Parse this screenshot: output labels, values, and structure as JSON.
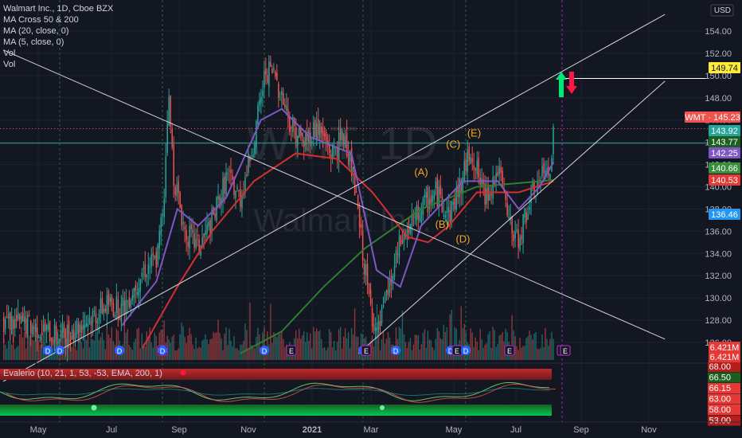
{
  "chart_data": {
    "type": "candlestick",
    "symbol_title": "Walmart Inc., 1D, Cboe BZX",
    "indicators": [
      "MA Cross 50 & 200",
      "MA (20, close, 0)",
      "MA (5, close, 0)",
      "Vol",
      "Vol"
    ],
    "watermark": {
      "ticker": "WMT, 1D",
      "name": "Walmart Inc."
    },
    "currency": "USD",
    "ylim": [
      125,
      155
    ],
    "y_ticks": [
      126,
      128,
      130,
      132,
      134,
      136,
      138,
      140,
      142,
      144,
      146,
      148,
      150,
      152,
      154
    ],
    "x_tick_labels": [
      "May",
      "Jul",
      "Sep",
      "Nov",
      "2021",
      "Mar",
      "May",
      "Jul",
      "Sep",
      "Nov"
    ],
    "close_series": [
      {
        "t": 0,
        "v": 128.0
      },
      {
        "t": 20,
        "v": 127.5
      },
      {
        "t": 40,
        "v": 126.5
      },
      {
        "t": 60,
        "v": 128.0
      },
      {
        "t": 75,
        "v": 129.5
      },
      {
        "t": 85,
        "v": 129.0
      },
      {
        "t": 100,
        "v": 132.5
      },
      {
        "t": 110,
        "v": 133.5
      },
      {
        "t": 115,
        "v": 139.0
      },
      {
        "t": 118,
        "v": 148.5
      },
      {
        "t": 122,
        "v": 141.0
      },
      {
        "t": 130,
        "v": 136.0
      },
      {
        "t": 140,
        "v": 134.5
      },
      {
        "t": 150,
        "v": 137.0
      },
      {
        "t": 160,
        "v": 141.0
      },
      {
        "t": 170,
        "v": 139.0
      },
      {
        "t": 180,
        "v": 144.5
      },
      {
        "t": 188,
        "v": 150.5
      },
      {
        "t": 195,
        "v": 150.0
      },
      {
        "t": 205,
        "v": 146.0
      },
      {
        "t": 215,
        "v": 144.0
      },
      {
        "t": 225,
        "v": 145.5
      },
      {
        "t": 235,
        "v": 143.0
      },
      {
        "t": 245,
        "v": 144.5
      },
      {
        "t": 250,
        "v": 141.5
      },
      {
        "t": 262,
        "v": 130.0
      },
      {
        "t": 268,
        "v": 126.5
      },
      {
        "t": 275,
        "v": 130.0
      },
      {
        "t": 285,
        "v": 135.0
      },
      {
        "t": 300,
        "v": 138.0
      },
      {
        "t": 310,
        "v": 139.5
      },
      {
        "t": 320,
        "v": 137.5
      },
      {
        "t": 330,
        "v": 141.0
      },
      {
        "t": 335,
        "v": 143.5
      },
      {
        "t": 345,
        "v": 139.0
      },
      {
        "t": 355,
        "v": 141.5
      },
      {
        "t": 362,
        "v": 137.0
      },
      {
        "t": 368,
        "v": 135.0
      },
      {
        "t": 380,
        "v": 139.5
      },
      {
        "t": 392,
        "v": 142.0
      },
      {
        "t": 395,
        "v": 145.2
      }
    ],
    "moving_averages": [
      {
        "name": "MA 200",
        "color": "#2e7d32",
        "points": [
          {
            "t": 170,
            "v": 125.0
          },
          {
            "t": 200,
            "v": 127.0
          },
          {
            "t": 230,
            "v": 131.0
          },
          {
            "t": 260,
            "v": 134.5
          },
          {
            "t": 300,
            "v": 138.0
          },
          {
            "t": 340,
            "v": 140.0
          },
          {
            "t": 395,
            "v": 140.6
          }
        ]
      },
      {
        "name": "MA 50",
        "color": "#d32f2f",
        "points": [
          {
            "t": 100,
            "v": 125.5
          },
          {
            "t": 125,
            "v": 131.0
          },
          {
            "t": 150,
            "v": 136.0
          },
          {
            "t": 180,
            "v": 140.5
          },
          {
            "t": 210,
            "v": 143.0
          },
          {
            "t": 240,
            "v": 142.5
          },
          {
            "t": 265,
            "v": 139.5
          },
          {
            "t": 290,
            "v": 135.5
          },
          {
            "t": 305,
            "v": 135.0
          },
          {
            "t": 320,
            "v": 136.5
          },
          {
            "t": 340,
            "v": 139.5
          },
          {
            "t": 370,
            "v": 139.5
          },
          {
            "t": 395,
            "v": 140.5
          }
        ]
      },
      {
        "name": "MA 20",
        "color": "#7e57c2",
        "points": [
          {
            "t": 85,
            "v": 127.5
          },
          {
            "t": 110,
            "v": 131.5
          },
          {
            "t": 125,
            "v": 138.0
          },
          {
            "t": 140,
            "v": 136.5
          },
          {
            "t": 160,
            "v": 139.0
          },
          {
            "t": 185,
            "v": 146.0
          },
          {
            "t": 200,
            "v": 147.0
          },
          {
            "t": 220,
            "v": 144.5
          },
          {
            "t": 250,
            "v": 143.0
          },
          {
            "t": 268,
            "v": 132.5
          },
          {
            "t": 285,
            "v": 131.0
          },
          {
            "t": 300,
            "v": 136.5
          },
          {
            "t": 330,
            "v": 140.5
          },
          {
            "t": 355,
            "v": 140.5
          },
          {
            "t": 370,
            "v": 138.0
          },
          {
            "t": 385,
            "v": 140.0
          },
          {
            "t": 395,
            "v": 142.2
          }
        ]
      }
    ],
    "wave_labels": [
      {
        "text": "(A)",
        "t": 300,
        "v": 141.0,
        "color": "#f5a623"
      },
      {
        "text": "(B)",
        "t": 315,
        "v": 136.3,
        "color": "#f5a623"
      },
      {
        "text": "(C)",
        "t": 323,
        "v": 143.5,
        "color": "#f5a623"
      },
      {
        "text": "(D)",
        "t": 330,
        "v": 135.0,
        "color": "#f5a623"
      },
      {
        "text": "(E)",
        "t": 338,
        "v": 144.5,
        "color": "#f5a623"
      }
    ],
    "trendlines": [
      {
        "name": "descending-line",
        "from": {
          "t": 0,
          "v": 152.3
        },
        "to": {
          "t": 475,
          "v": 126.3
        }
      },
      {
        "name": "channel-upper",
        "from": {
          "t": 0,
          "v": 122.5
        },
        "to": {
          "t": 475,
          "v": 155.5
        }
      },
      {
        "name": "channel-lower",
        "from": {
          "t": 255,
          "v": 125.0
        },
        "to": {
          "t": 475,
          "v": 149.5
        }
      }
    ],
    "horizontal_lines": [
      {
        "name": "target-149-74",
        "v": 149.74,
        "color": "#ffffff"
      },
      {
        "name": "level-143-92",
        "v": 143.92,
        "color": "#26a69a"
      },
      {
        "name": "last-price-line",
        "v": 145.23,
        "color": "#ef5350"
      }
    ],
    "price_labels": [
      {
        "text": "149.74",
        "v": 149.74,
        "bg": "#ffeb3b",
        "fg": "#131722"
      },
      {
        "text": "WMT · 145.23",
        "v": 145.23,
        "bg": "#ef5350",
        "fg": "#ffffff"
      },
      {
        "text": "143.92",
        "v": 143.92,
        "bg": "#26a69a",
        "fg": "#ffffff"
      },
      {
        "text": "143.77",
        "v": 143.77,
        "bg": "#1b5e20",
        "fg": "#ffffff"
      },
      {
        "text": "142.25",
        "v": 142.25,
        "bg": "#7e57c2",
        "fg": "#ffffff"
      },
      {
        "text": "140.66",
        "v": 140.66,
        "bg": "#388e3c",
        "fg": "#ffffff"
      },
      {
        "text": "140.53",
        "v": 140.53,
        "bg": "#e53935",
        "fg": "#ffffff"
      },
      {
        "text": "136.46",
        "v": 136.46,
        "bg": "#2196f3",
        "fg": "#ffffff"
      },
      {
        "text": "6.421M",
        "v": 124.8,
        "bg": "#e53935",
        "fg": "#ffffff"
      },
      {
        "text": "6.421M",
        "v": 123.8,
        "bg": "#e53935",
        "fg": "#ffffff"
      }
    ],
    "event_markers": [
      "D",
      "D",
      "D",
      "E",
      "D",
      "D",
      "E",
      "D",
      "E",
      "D",
      "D",
      "E",
      "D",
      "E",
      "D",
      "E",
      "E"
    ],
    "signal_arrows": [
      {
        "name": "up-arrow",
        "direction": "up",
        "color": "#00e676"
      },
      {
        "name": "down-arrow",
        "direction": "down",
        "color": "#ff1744"
      }
    ],
    "oscillator": {
      "title": "Evalerio (10, 21, 1, 53, -53, EMA, 200, 1)",
      "ticks": [
        "68.00",
        "66.50",
        "66.15",
        "63.00",
        "58.00",
        "53.00"
      ],
      "tick_colors": [
        "#b71c1c",
        "#1b5e20",
        "#e53935",
        "#e53935",
        "#e53935",
        "#b71c1c"
      ]
    }
  }
}
